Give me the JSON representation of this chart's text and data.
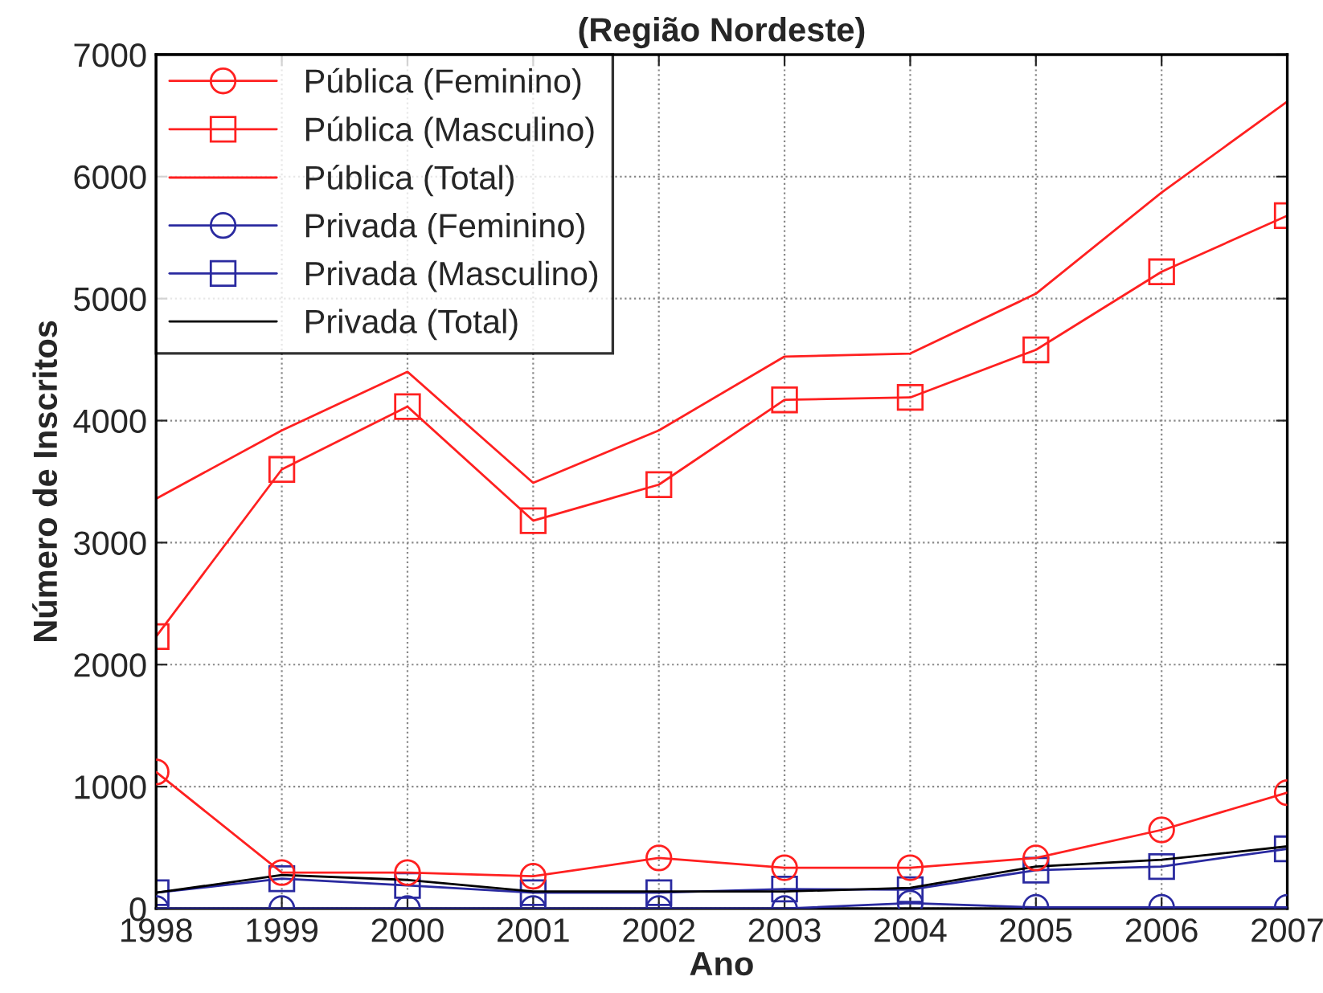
{
  "chart_data": {
    "type": "line",
    "title": "(Região Nordeste)",
    "xlabel": "Ano",
    "ylabel": "Número de Inscritos",
    "x": [
      1998,
      1999,
      2000,
      2001,
      2002,
      2003,
      2004,
      2005,
      2006,
      2007
    ],
    "xlim": [
      1998,
      2007
    ],
    "xticks": [
      1998,
      1999,
      2000,
      2001,
      2002,
      2003,
      2004,
      2005,
      2006,
      2007
    ],
    "ylim": [
      0,
      7000
    ],
    "yticks": [
      0,
      1000,
      2000,
      3000,
      4000,
      5000,
      6000,
      7000
    ],
    "grid": true,
    "legend": "top left",
    "line_style": "solid",
    "series": [
      {
        "name": "Pública (Feminino)",
        "color": "#ff2020",
        "marker": "circle",
        "values": [
          1120,
          295,
          295,
          265,
          415,
          335,
          335,
          415,
          645,
          950
        ]
      },
      {
        "name": "Pública (Masculino)",
        "color": "#ff2020",
        "marker": "square",
        "values": [
          2230,
          3600,
          4115,
          3180,
          3475,
          4170,
          4190,
          4580,
          5220,
          5680
        ]
      },
      {
        "name": "Pública (Total)",
        "color": "#ff2020",
        "marker": "none",
        "values": [
          3360,
          3920,
          4400,
          3490,
          3920,
          4525,
          4550,
          5040,
          5870,
          6615
        ]
      },
      {
        "name": "Privada (Feminino)",
        "color": "#2a2aa0",
        "marker": "circle",
        "values": [
          0,
          0,
          0,
          0,
          0,
          0,
          45,
          10,
          10,
          10
        ]
      },
      {
        "name": "Privada (Masculino)",
        "color": "#2a2aa0",
        "marker": "square",
        "values": [
          130,
          245,
          190,
          130,
          130,
          160,
          155,
          315,
          345,
          490
        ]
      },
      {
        "name": "Privada (Total)",
        "color": "#000000",
        "marker": "none",
        "values": [
          130,
          275,
          235,
          140,
          140,
          140,
          170,
          345,
          400,
          510
        ]
      }
    ]
  }
}
